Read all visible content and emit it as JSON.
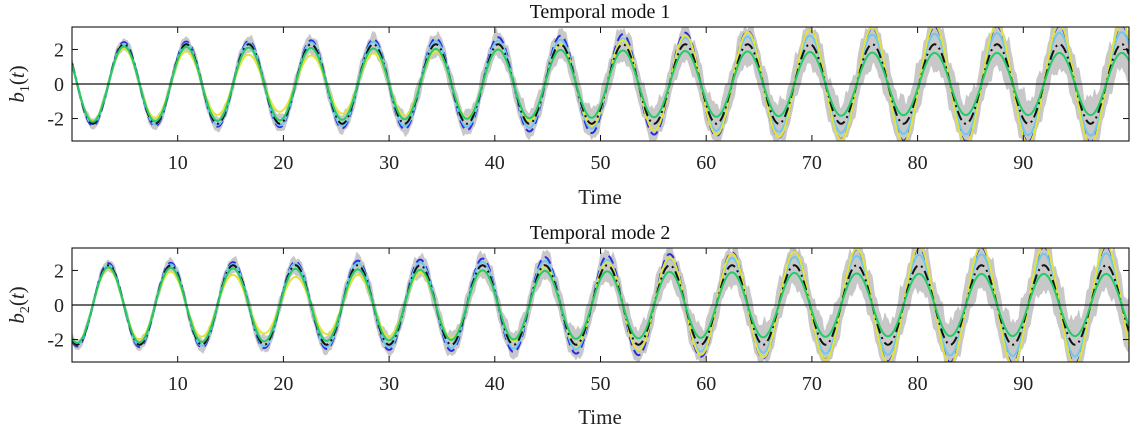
{
  "chart_data": [
    {
      "type": "line",
      "title": "Temporal mode 1",
      "xlabel": "Time",
      "ylabel": "b_1(t)",
      "xlim": [
        0,
        100
      ],
      "ylim": [
        -3.3,
        3.3
      ],
      "xticks": [
        10,
        20,
        30,
        40,
        50,
        60,
        70,
        80,
        90
      ],
      "yticks": [
        2,
        0,
        -2
      ],
      "grid": false,
      "zero_line": true,
      "period": 5.9,
      "phase_deg": 150,
      "band": {
        "name": "uncertainty band",
        "color": "#c8c8c8",
        "halfwidth_at": {
          "x": [
            0,
            20,
            40,
            60,
            80,
            100
          ],
          "y": [
            0.3,
            0.5,
            0.75,
            1.1,
            1.4,
            1.5
          ]
        }
      },
      "series": [
        {
          "color": "#2a2ae6",
          "style": "dashed",
          "amplitude_at": {
            "x": [
              0,
              20,
              40,
              60,
              80,
              100
            ],
            "y": [
              2.4,
              2.5,
              2.7,
              3.0,
              3.3,
              3.4
            ]
          }
        },
        {
          "color": "#6cc8f2",
          "style": "solid",
          "amplitude_at": {
            "x": [
              0,
              20,
              40,
              60,
              80,
              100
            ],
            "y": [
              2.3,
              2.4,
              2.5,
              2.7,
              2.9,
              3.0
            ]
          }
        },
        {
          "color": "#e3e33a",
          "style": "solid",
          "amplitude_at": {
            "x": [
              0,
              20,
              40,
              60,
              80,
              100
            ],
            "y": [
              2.2,
              1.6,
              2.0,
              2.9,
              3.4,
              3.5
            ]
          }
        },
        {
          "color": "#111111",
          "style": "dashdot",
          "amplitude_at": {
            "x": [
              0,
              20,
              40,
              60,
              80,
              100
            ],
            "y": [
              2.3,
              2.3,
              2.3,
              2.3,
              2.3,
              2.3
            ]
          }
        },
        {
          "color": "#22cc66",
          "style": "solid",
          "amplitude_at": {
            "x": [
              0,
              20,
              40,
              60,
              80,
              100
            ],
            "y": [
              2.2,
              2.1,
              2.0,
              1.9,
              1.8,
              1.8
            ]
          }
        }
      ]
    },
    {
      "type": "line",
      "title": "Temporal mode 2",
      "xlabel": "Time",
      "ylabel": "b_2(t)",
      "xlim": [
        0,
        100
      ],
      "ylim": [
        -3.3,
        3.3
      ],
      "xticks": [
        10,
        20,
        30,
        40,
        50,
        60,
        70,
        80,
        90
      ],
      "yticks": [
        2,
        0,
        -2
      ],
      "grid": false,
      "zero_line": true,
      "period": 5.9,
      "phase_deg": 240,
      "band": {
        "name": "uncertainty band",
        "color": "#c8c8c8",
        "halfwidth_at": {
          "x": [
            0,
            20,
            40,
            60,
            80,
            100
          ],
          "y": [
            0.3,
            0.5,
            0.75,
            1.1,
            1.4,
            1.5
          ]
        }
      },
      "series": [
        {
          "color": "#2a2ae6",
          "style": "dashed",
          "amplitude_at": {
            "x": [
              0,
              20,
              40,
              60,
              80,
              100
            ],
            "y": [
              2.4,
              2.5,
              2.7,
              3.0,
              3.3,
              3.4
            ]
          }
        },
        {
          "color": "#6cc8f2",
          "style": "solid",
          "amplitude_at": {
            "x": [
              0,
              20,
              40,
              60,
              80,
              100
            ],
            "y": [
              2.3,
              2.4,
              2.5,
              2.7,
              2.9,
              3.0
            ]
          }
        },
        {
          "color": "#e3e33a",
          "style": "solid",
          "amplitude_at": {
            "x": [
              0,
              20,
              40,
              60,
              80,
              100
            ],
            "y": [
              2.2,
              1.6,
              2.0,
              2.9,
              3.4,
              3.5
            ]
          }
        },
        {
          "color": "#111111",
          "style": "dashdot",
          "amplitude_at": {
            "x": [
              0,
              20,
              40,
              60,
              80,
              100
            ],
            "y": [
              2.3,
              2.3,
              2.3,
              2.3,
              2.3,
              2.3
            ]
          }
        },
        {
          "color": "#22cc66",
          "style": "solid",
          "amplitude_at": {
            "x": [
              0,
              20,
              40,
              60,
              80,
              100
            ],
            "y": [
              2.2,
              2.1,
              2.0,
              1.9,
              1.8,
              1.8
            ]
          }
        }
      ]
    }
  ]
}
